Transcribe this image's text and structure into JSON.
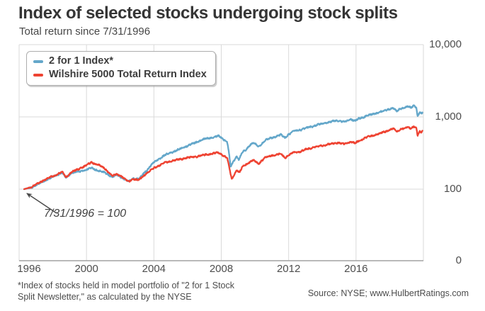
{
  "header": {
    "title": "Index of selected stocks undergoing stock splits",
    "subtitle": "Total return since 7/31/1996"
  },
  "legend": {
    "items": [
      {
        "label": "2 for 1 Index*",
        "color": "#64a7ca"
      },
      {
        "label": "Wilshire 5000 Total Return Index",
        "color": "#ee4332"
      }
    ]
  },
  "annotation": {
    "text": "7/31/1996 = 100"
  },
  "footnote": {
    "text": "*Index of stocks held in model portfolio of \"2 for 1 Stock\nSplit Newsletter,\" as calculated by the NYSE"
  },
  "source": {
    "text": "Source: NYSE; www.HulbertRatings.com"
  },
  "chart_data": {
    "type": "line",
    "title": "Index of selected stocks undergoing stock splits",
    "subtitle": "Total return since 7/31/1996",
    "grid": true,
    "base_value_note": "7/31/1996 = 100",
    "x_axis": {
      "domain": [
        1996,
        2020
      ],
      "ticks": [
        1996,
        2000,
        2004,
        2008,
        2012,
        2016
      ]
    },
    "y_axis": {
      "scale": "log",
      "side": "right",
      "ticks": [
        {
          "label": "10,000",
          "value": 10000
        },
        {
          "label": "1,000",
          "value": 1000
        },
        {
          "label": "100",
          "value": 100
        },
        {
          "label": "0",
          "value": 0
        }
      ]
    },
    "series": [
      {
        "name": "2 for 1 Index*",
        "color": "#64a7ca",
        "points": [
          [
            1996.3,
            100
          ],
          [
            1996.7,
            105
          ],
          [
            1997.0,
            113
          ],
          [
            1997.4,
            127
          ],
          [
            1997.8,
            140
          ],
          [
            1998.2,
            155
          ],
          [
            1998.55,
            170
          ],
          [
            1998.78,
            143
          ],
          [
            1999.1,
            168
          ],
          [
            1999.5,
            174
          ],
          [
            2000.0,
            186
          ],
          [
            2000.3,
            197
          ],
          [
            2000.7,
            180
          ],
          [
            2001.1,
            168
          ],
          [
            2001.55,
            147
          ],
          [
            2001.8,
            157
          ],
          [
            2002.1,
            145
          ],
          [
            2002.5,
            127
          ],
          [
            2002.75,
            141
          ],
          [
            2003.1,
            138
          ],
          [
            2003.5,
            175
          ],
          [
            2004.0,
            235
          ],
          [
            2004.6,
            290
          ],
          [
            2005.0,
            320
          ],
          [
            2005.5,
            355
          ],
          [
            2006.0,
            400
          ],
          [
            2006.6,
            455
          ],
          [
            2007.1,
            500
          ],
          [
            2007.5,
            525
          ],
          [
            2007.85,
            545
          ],
          [
            2008.1,
            500
          ],
          [
            2008.35,
            450
          ],
          [
            2008.45,
            330
          ],
          [
            2008.55,
            205
          ],
          [
            2008.75,
            246
          ],
          [
            2008.9,
            289
          ],
          [
            2009.05,
            258
          ],
          [
            2009.25,
            324
          ],
          [
            2009.45,
            347
          ],
          [
            2009.77,
            424
          ],
          [
            2009.95,
            435
          ],
          [
            2010.2,
            385
          ],
          [
            2010.6,
            475
          ],
          [
            2010.9,
            505
          ],
          [
            2011.3,
            545
          ],
          [
            2011.55,
            565
          ],
          [
            2011.78,
            515
          ],
          [
            2012.0,
            575
          ],
          [
            2012.3,
            635
          ],
          [
            2012.7,
            665
          ],
          [
            2013.1,
            705
          ],
          [
            2013.6,
            765
          ],
          [
            2014.2,
            825
          ],
          [
            2014.9,
            895
          ],
          [
            2015.3,
            850
          ],
          [
            2015.7,
            930
          ],
          [
            2015.95,
            880
          ],
          [
            2016.2,
            950
          ],
          [
            2016.6,
            1030
          ],
          [
            2017.0,
            1090
          ],
          [
            2017.5,
            1180
          ],
          [
            2018.0,
            1290
          ],
          [
            2018.2,
            1340
          ],
          [
            2018.42,
            1195
          ],
          [
            2018.65,
            1310
          ],
          [
            2018.9,
            1345
          ],
          [
            2019.1,
            1390
          ],
          [
            2019.25,
            1330
          ],
          [
            2019.45,
            1465
          ],
          [
            2019.58,
            1350
          ],
          [
            2019.65,
            1020
          ],
          [
            2019.78,
            1150
          ],
          [
            2019.88,
            1100
          ],
          [
            2019.95,
            1130
          ]
        ]
      },
      {
        "name": "Wilshire 5000 Total Return Index",
        "color": "#ee4332",
        "points": [
          [
            1996.3,
            100
          ],
          [
            1996.7,
            107
          ],
          [
            1997.0,
            116
          ],
          [
            1997.4,
            131
          ],
          [
            1997.8,
            144
          ],
          [
            1998.2,
            158
          ],
          [
            1998.55,
            174
          ],
          [
            1998.78,
            146
          ],
          [
            1999.1,
            172
          ],
          [
            1999.5,
            188
          ],
          [
            2000.0,
            215
          ],
          [
            2000.3,
            235
          ],
          [
            2000.7,
            216
          ],
          [
            2001.1,
            192
          ],
          [
            2001.55,
            151
          ],
          [
            2001.8,
            163
          ],
          [
            2002.1,
            149
          ],
          [
            2002.5,
            126
          ],
          [
            2002.75,
            139
          ],
          [
            2003.1,
            133
          ],
          [
            2003.5,
            162
          ],
          [
            2004.0,
            195
          ],
          [
            2004.6,
            230
          ],
          [
            2005.0,
            245
          ],
          [
            2005.5,
            258
          ],
          [
            2006.0,
            272
          ],
          [
            2006.6,
            285
          ],
          [
            2007.1,
            300
          ],
          [
            2007.5,
            310
          ],
          [
            2007.85,
            320
          ],
          [
            2008.1,
            295
          ],
          [
            2008.35,
            270
          ],
          [
            2008.45,
            210
          ],
          [
            2008.62,
            137
          ],
          [
            2008.78,
            162
          ],
          [
            2008.92,
            185
          ],
          [
            2009.07,
            168
          ],
          [
            2009.27,
            205
          ],
          [
            2009.47,
            220
          ],
          [
            2009.79,
            245
          ],
          [
            2009.95,
            250
          ],
          [
            2010.2,
            225
          ],
          [
            2010.6,
            272
          ],
          [
            2010.9,
            290
          ],
          [
            2011.3,
            300
          ],
          [
            2011.55,
            310
          ],
          [
            2011.78,
            272
          ],
          [
            2012.0,
            295
          ],
          [
            2012.3,
            323
          ],
          [
            2012.7,
            332
          ],
          [
            2013.1,
            360
          ],
          [
            2013.6,
            385
          ],
          [
            2014.2,
            410
          ],
          [
            2014.9,
            440
          ],
          [
            2015.3,
            420
          ],
          [
            2015.7,
            455
          ],
          [
            2015.95,
            430
          ],
          [
            2016.2,
            470
          ],
          [
            2016.6,
            520
          ],
          [
            2017.0,
            550
          ],
          [
            2017.5,
            600
          ],
          [
            2018.0,
            660
          ],
          [
            2018.2,
            690
          ],
          [
            2018.42,
            620
          ],
          [
            2018.65,
            680
          ],
          [
            2018.9,
            700
          ],
          [
            2019.1,
            715
          ],
          [
            2019.25,
            690
          ],
          [
            2019.45,
            745
          ],
          [
            2019.58,
            705
          ],
          [
            2019.65,
            550
          ],
          [
            2019.78,
            620
          ],
          [
            2019.88,
            600
          ],
          [
            2019.95,
            650
          ]
        ]
      }
    ]
  }
}
